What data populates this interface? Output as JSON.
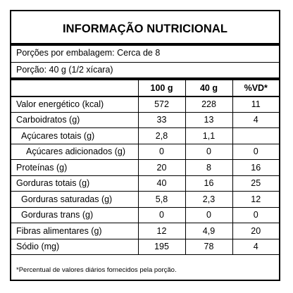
{
  "title": "INFORMAÇÃO NUTRICIONAL",
  "servings_per_package": "Porções por embalagem: Cerca de 8",
  "serving_size": "Porção: 40 g (1/2 xícara)",
  "columns": [
    "",
    "100 g",
    "40 g",
    "%VD*"
  ],
  "rows": [
    {
      "name": "Valor energético (kcal)",
      "v100": "572",
      "v40": "228",
      "vd": "11",
      "indent": 0
    },
    {
      "name": "Carboidratos (g)",
      "v100": "33",
      "v40": "13",
      "vd": "4",
      "indent": 0
    },
    {
      "name": "Açúcares totais (g)",
      "v100": "2,8",
      "v40": "1,1",
      "vd": "",
      "indent": 1
    },
    {
      "name": "Açúcares adicionados (g)",
      "v100": "0",
      "v40": "0",
      "vd": "0",
      "indent": 2
    },
    {
      "name": "Proteínas (g)",
      "v100": "20",
      "v40": "8",
      "vd": "16",
      "indent": 0
    },
    {
      "name": "Gorduras totais (g)",
      "v100": "40",
      "v40": "16",
      "vd": "25",
      "indent": 0
    },
    {
      "name": "Gorduras saturadas (g)",
      "v100": "5,8",
      "v40": "2,3",
      "vd": "12",
      "indent": 1
    },
    {
      "name": "Gorduras trans (g)",
      "v100": "0",
      "v40": "0",
      "vd": "0",
      "indent": 1
    },
    {
      "name": "Fibras alimentares (g)",
      "v100": "12",
      "v40": "4,9",
      "vd": "20",
      "indent": 0
    },
    {
      "name": "Sódio (mg)",
      "v100": "195",
      "v40": "78",
      "vd": "4",
      "indent": 0
    }
  ],
  "footnote": "*Percentual de valores diários fornecidos pela porção."
}
